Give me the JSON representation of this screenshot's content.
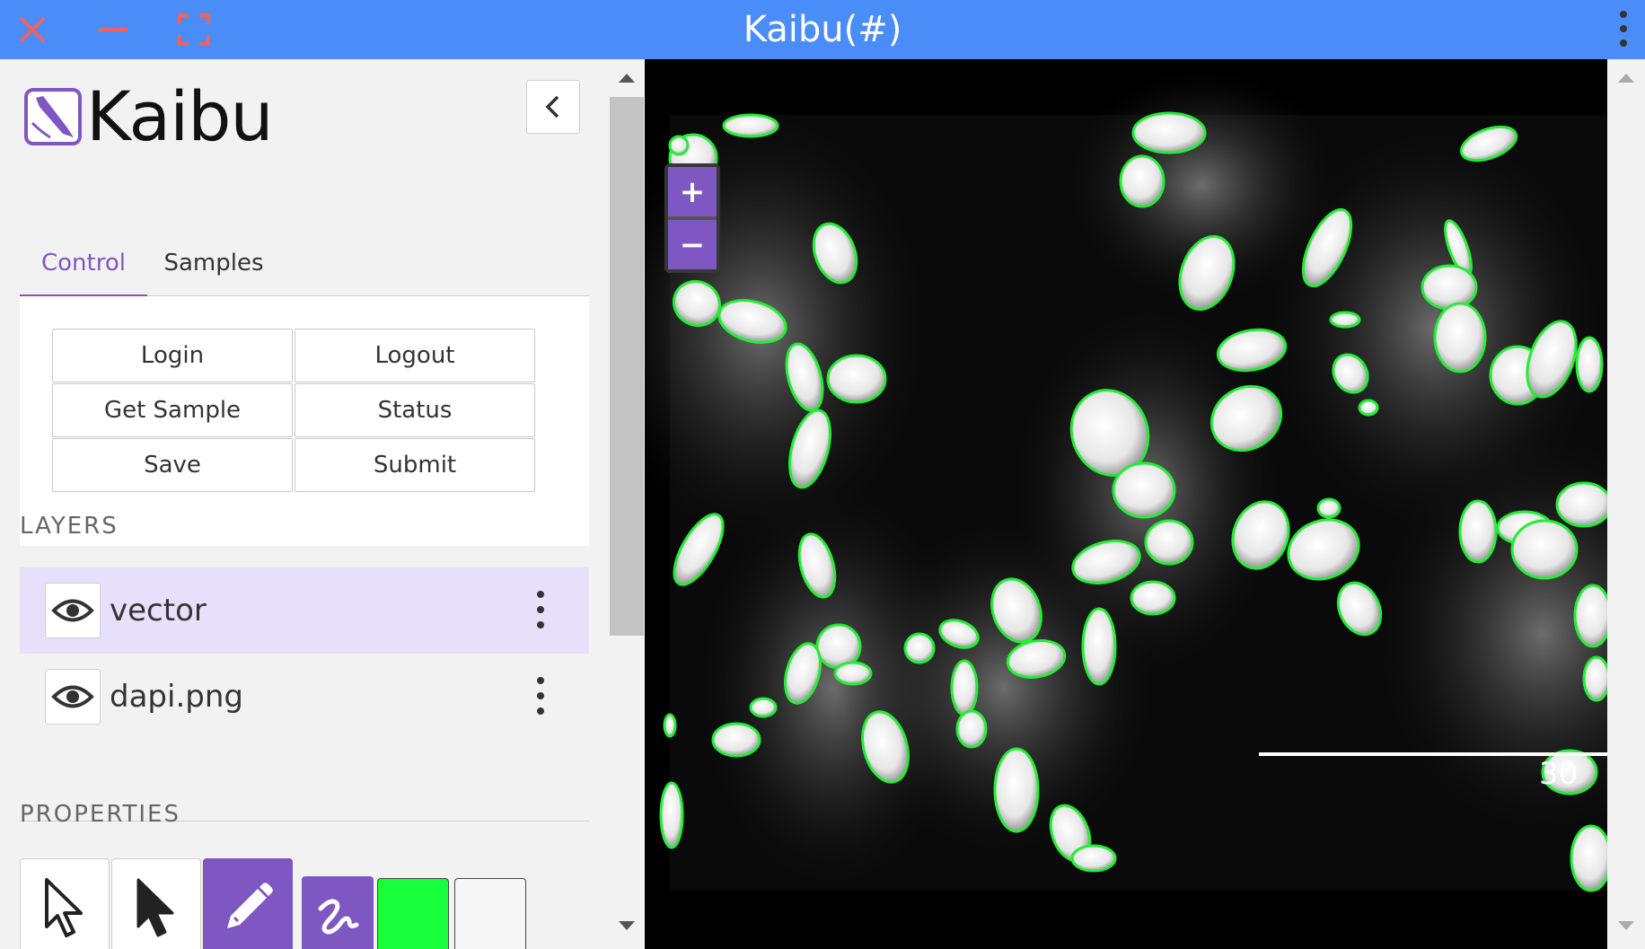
{
  "window": {
    "title": "Kaibu(#)"
  },
  "app": {
    "name": "Kaibu"
  },
  "tabs": [
    {
      "label": "Control"
    },
    {
      "label": "Samples"
    }
  ],
  "control": {
    "buttons": [
      {
        "label": "Login"
      },
      {
        "label": "Logout"
      },
      {
        "label": "Get Sample"
      },
      {
        "label": "Status"
      },
      {
        "label": "Save"
      },
      {
        "label": "Submit"
      }
    ]
  },
  "layers": {
    "heading": "LAYERS",
    "items": [
      {
        "name": "vector",
        "selected": true
      },
      {
        "name": "dapi.png",
        "selected": false
      }
    ]
  },
  "properties": {
    "heading": "PROPERTIES",
    "tools": [
      "select-outline-icon",
      "select-filled-icon",
      "pencil-icon",
      "freehand-icon"
    ],
    "stroke_color": "#16ff3a",
    "fill_color": "#ffffff"
  },
  "viewer": {
    "zoom_in": "+",
    "zoom_out": "−",
    "scale_label": "30"
  },
  "colors": {
    "titlebar": "#4a8df8",
    "accent": "#7e57c2",
    "outline": "#22ee33"
  }
}
